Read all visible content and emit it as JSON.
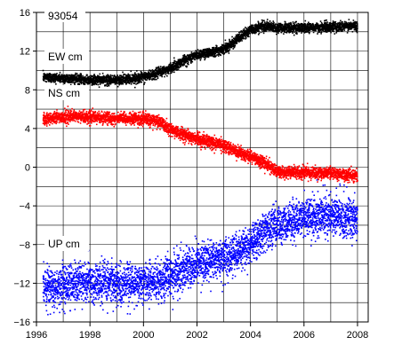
{
  "chart_data": {
    "type": "scatter",
    "title": "",
    "xlabel": "",
    "ylabel": "",
    "station_label": "93054",
    "xlim": [
      1996,
      2008.4
    ],
    "ylim": [
      -16,
      16
    ],
    "x_ticks": [
      1996,
      1998,
      2000,
      2002,
      2004,
      2006,
      2008
    ],
    "y_ticks": [
      -16,
      -12,
      -8,
      -4,
      0,
      4,
      8,
      12,
      16
    ],
    "grid": true,
    "series": [
      {
        "name": "EW cm",
        "color": "#000000",
        "x_range": [
          1996.25,
          2008.0
        ],
        "profile": [
          [
            1996.25,
            9.3
          ],
          [
            1997.0,
            9.2
          ],
          [
            1998.0,
            9.0
          ],
          [
            1999.0,
            9.0
          ],
          [
            2000.0,
            9.3
          ],
          [
            2000.5,
            9.7
          ],
          [
            2001.0,
            10.2
          ],
          [
            2001.5,
            11.0
          ],
          [
            2002.0,
            11.6
          ],
          [
            2003.0,
            12.2
          ],
          [
            2003.5,
            13.2
          ],
          [
            2004.0,
            14.2
          ],
          [
            2004.5,
            14.6
          ],
          [
            2005.0,
            14.4
          ],
          [
            2006.0,
            14.4
          ],
          [
            2007.0,
            14.5
          ],
          [
            2008.0,
            14.6
          ]
        ],
        "noise": 0.25
      },
      {
        "name": "NS cm",
        "color": "#ff0000",
        "x_range": [
          1996.25,
          2008.0
        ],
        "profile": [
          [
            1996.25,
            5.0
          ],
          [
            1997.0,
            5.2
          ],
          [
            1998.0,
            5.2
          ],
          [
            1999.0,
            5.0
          ],
          [
            2000.0,
            5.0
          ],
          [
            2000.5,
            4.8
          ],
          [
            2001.0,
            3.9
          ],
          [
            2002.0,
            2.9
          ],
          [
            2003.0,
            2.3
          ],
          [
            2003.5,
            1.6
          ],
          [
            2004.0,
            1.1
          ],
          [
            2004.5,
            0.5
          ],
          [
            2005.0,
            -0.5
          ],
          [
            2006.0,
            -0.6
          ],
          [
            2007.0,
            -0.6
          ],
          [
            2008.0,
            -0.9
          ]
        ],
        "noise": 0.3
      },
      {
        "name": "UP cm",
        "color": "#0000ff",
        "x_range": [
          1996.25,
          2008.0
        ],
        "profile": [
          [
            1996.25,
            -12.3
          ],
          [
            1997.0,
            -12.2
          ],
          [
            1998.0,
            -11.9
          ],
          [
            1999.0,
            -12.0
          ],
          [
            2000.0,
            -11.9
          ],
          [
            2000.8,
            -11.6
          ],
          [
            2001.5,
            -10.6
          ],
          [
            2002.0,
            -10.0
          ],
          [
            2003.0,
            -9.4
          ],
          [
            2003.5,
            -8.8
          ],
          [
            2004.0,
            -8.0
          ],
          [
            2004.5,
            -6.8
          ],
          [
            2005.0,
            -6.0
          ],
          [
            2005.5,
            -5.5
          ],
          [
            2006.0,
            -5.2
          ],
          [
            2007.0,
            -5.0
          ],
          [
            2008.0,
            -5.3
          ]
        ],
        "noise": 1.0
      }
    ]
  }
}
